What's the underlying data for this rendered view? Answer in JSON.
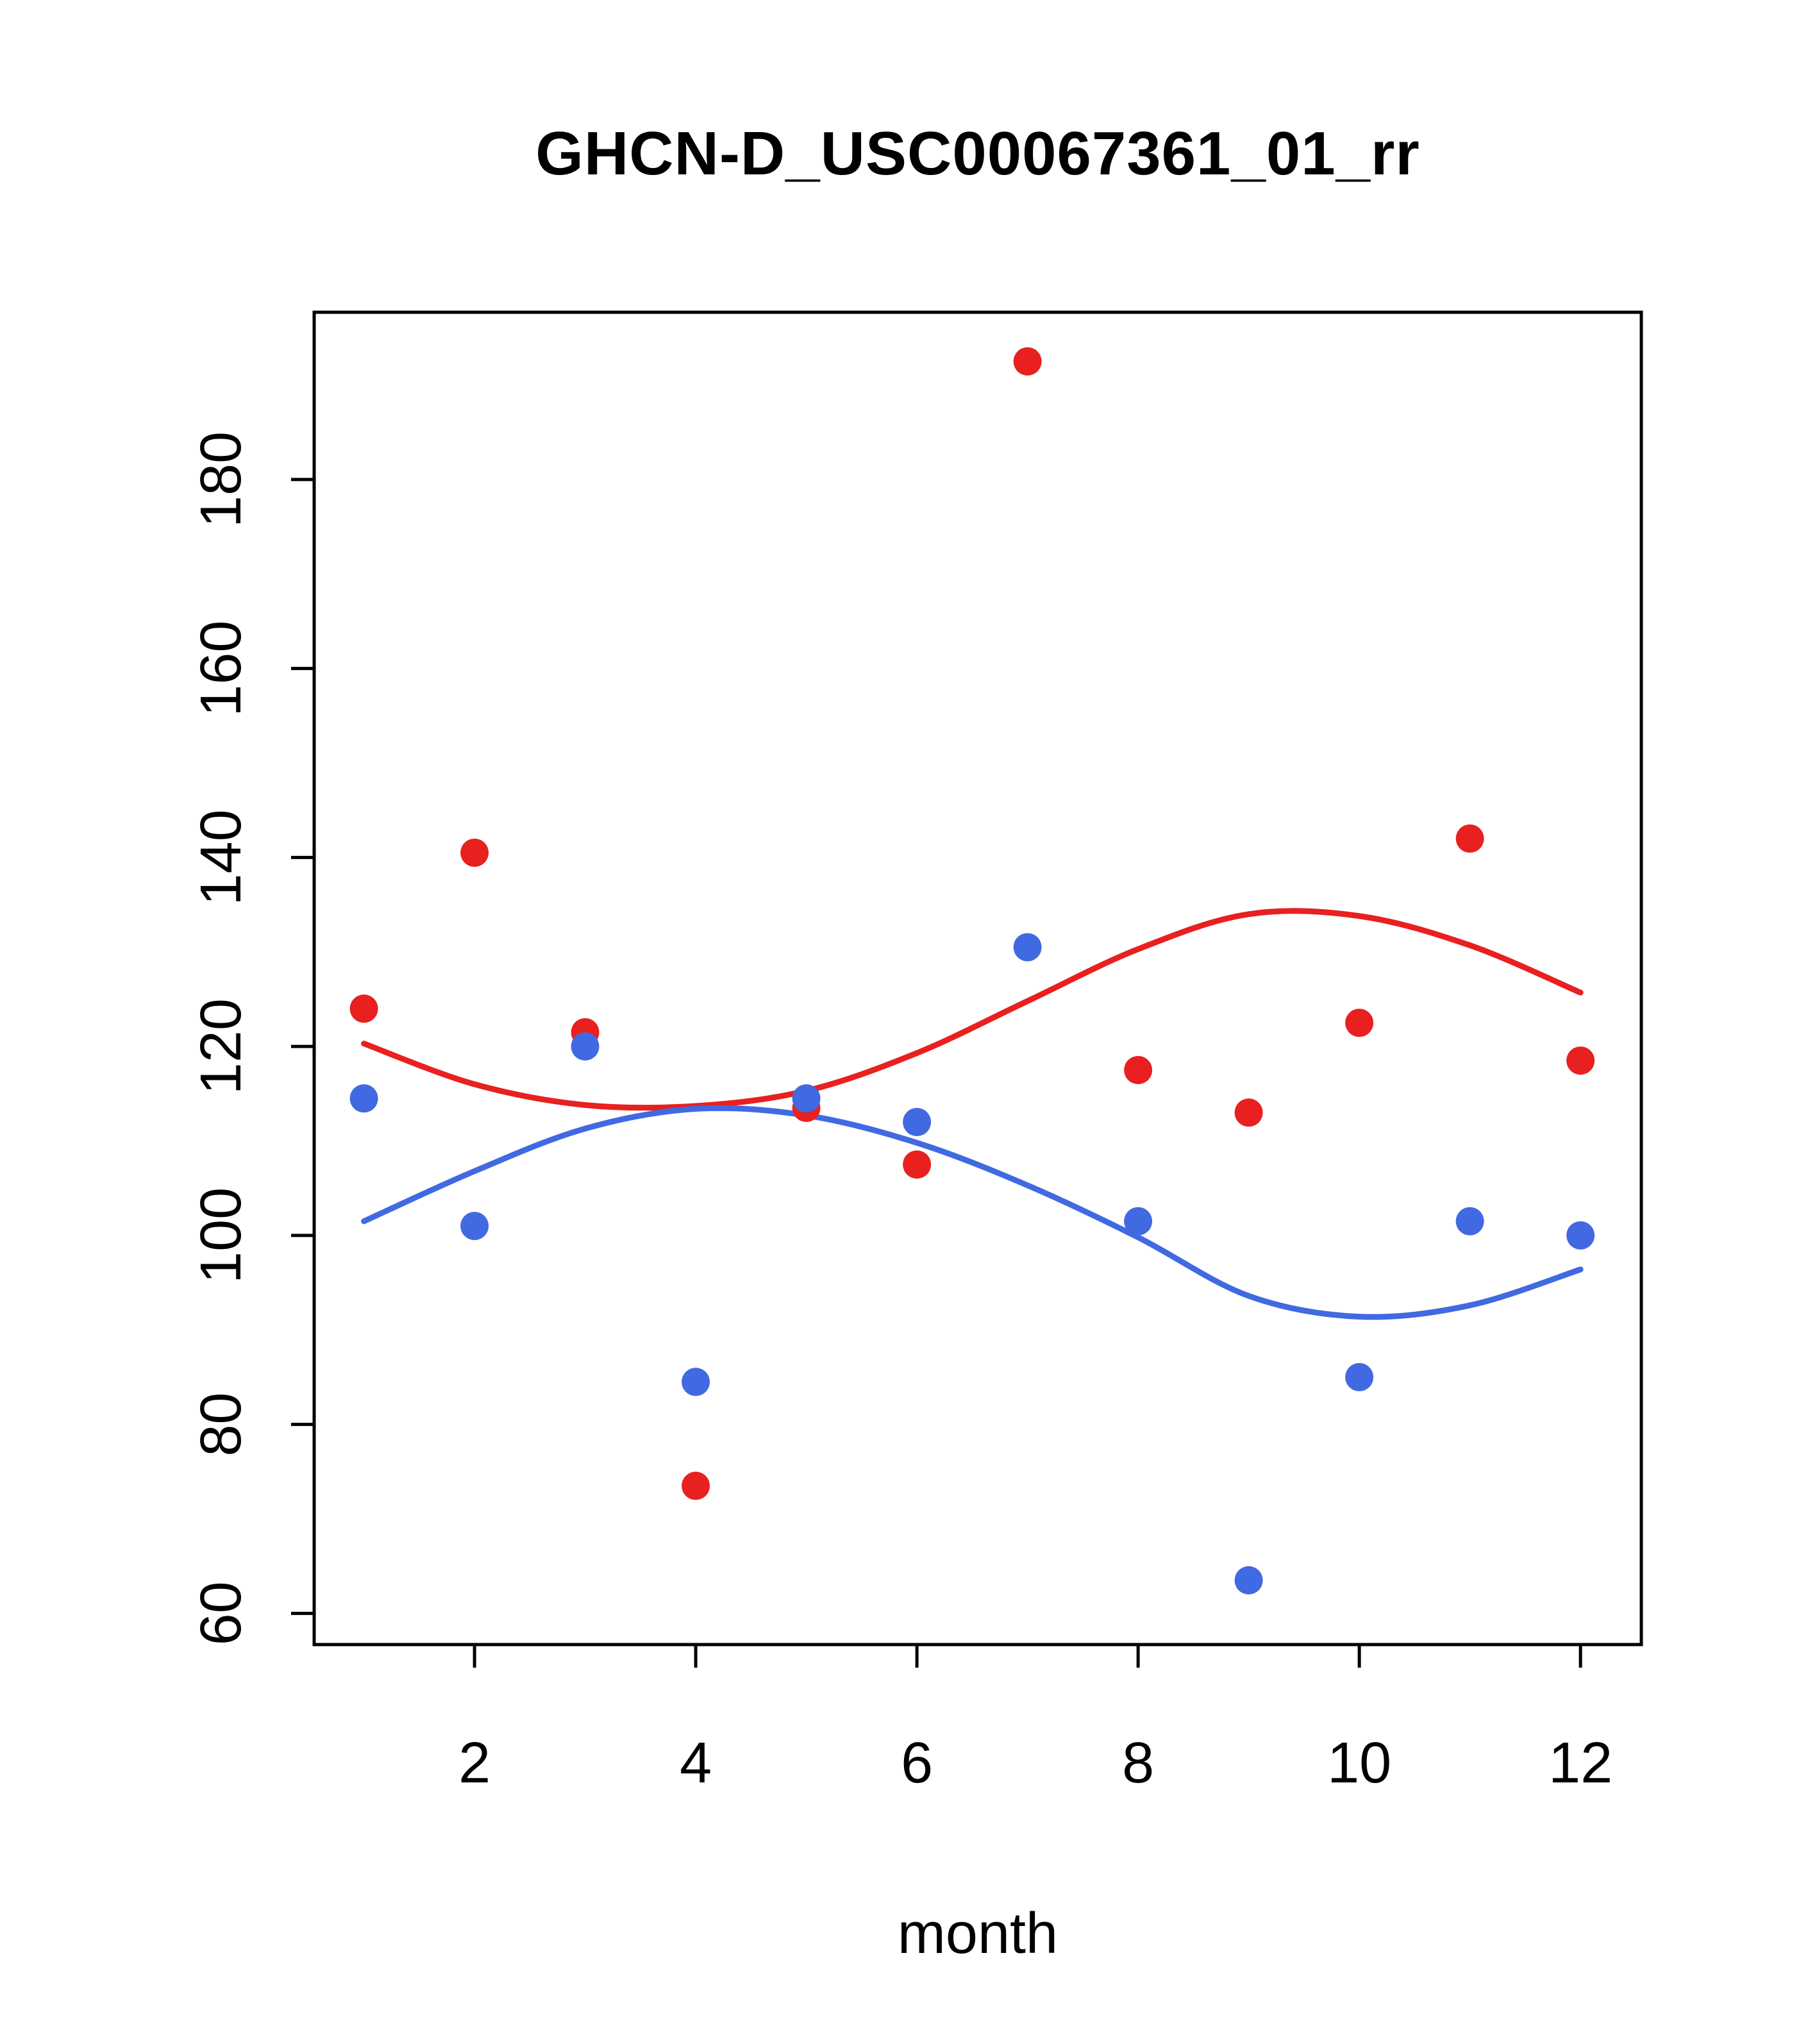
{
  "chart_data": {
    "type": "scatter",
    "title": "GHCN-D_USC00067361_01_rr",
    "xlabel": "month",
    "ylabel": "",
    "xlim": [
      0.55,
      12.55
    ],
    "ylim": [
      56.7,
      197.7
    ],
    "xticks": [
      2,
      4,
      6,
      8,
      10,
      12
    ],
    "yticks": [
      60,
      80,
      100,
      120,
      140,
      160,
      180
    ],
    "grid": false,
    "legend": "none",
    "colors": {
      "red": "#e8201f",
      "blue": "#4169e1",
      "axis": "#000000"
    },
    "x_months": [
      1,
      2,
      3,
      4,
      5,
      6,
      7,
      8,
      9,
      10,
      11,
      12
    ],
    "series": [
      {
        "name": "red points",
        "kind": "scatter",
        "color_key": "red",
        "values": [
          124,
          140.5,
          121.5,
          73.5,
          113.5,
          107.5,
          192.5,
          117.5,
          113,
          122.5,
          142,
          118.5
        ]
      },
      {
        "name": "blue points",
        "kind": "scatter",
        "color_key": "blue",
        "values": [
          114.5,
          101,
          120,
          84.5,
          114.5,
          112,
          130.5,
          101.5,
          63.5,
          85,
          101.5,
          100
        ]
      },
      {
        "name": "red smooth line",
        "kind": "line",
        "color_key": "red",
        "values": [
          120.3,
          116.0,
          113.8,
          113.7,
          115.3,
          119.3,
          124.8,
          130.3,
          134.0,
          133.8,
          130.7,
          125.7
        ]
      },
      {
        "name": "blue smooth line",
        "kind": "line",
        "color_key": "blue",
        "values": [
          101.5,
          106.8,
          111.3,
          113.4,
          112.7,
          109.8,
          105.3,
          99.8,
          93.6,
          91.4,
          92.6,
          96.4
        ]
      }
    ]
  }
}
